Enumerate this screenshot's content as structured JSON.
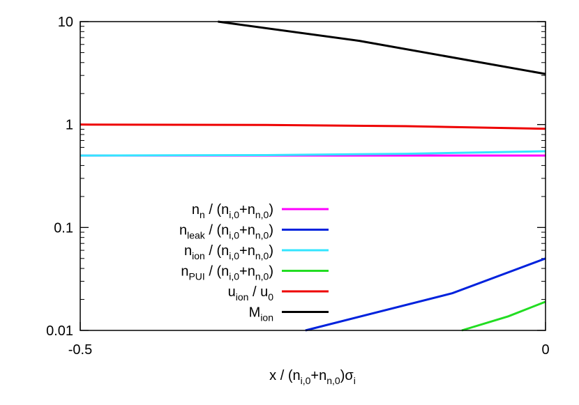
{
  "chart_data": {
    "type": "line",
    "title": "",
    "xlabel": {
      "base": "x / (n",
      "sub1": "i,0",
      "mid": "+n",
      "sub2": "n,0",
      "end": ")σ",
      "sub3": "i"
    },
    "ylabel": "",
    "xlim": [
      -0.5,
      0
    ],
    "ylim": [
      0.01,
      10
    ],
    "yscale": "log",
    "grid": false,
    "legend_position": "bottom-left",
    "x_ticks": [
      {
        "value": -0.5,
        "label": "-0.5"
      },
      {
        "value": 0,
        "label": "0"
      }
    ],
    "y_ticks": [
      {
        "value": 0.01,
        "label": "0.01"
      },
      {
        "value": 0.1,
        "label": "0.1"
      },
      {
        "value": 1,
        "label": "1"
      },
      {
        "value": 10,
        "label": "10"
      }
    ],
    "series": [
      {
        "name": {
          "main": "n",
          "sub": "n",
          "rest": " / (n",
          "sub2": "i,0",
          "rest2": "+n",
          "sub3": "n,0",
          "rest3": ")"
        },
        "color": "#ff00ff",
        "points": [
          [
            -0.5,
            0.5
          ],
          [
            -0.25,
            0.5
          ],
          [
            0,
            0.5
          ]
        ]
      },
      {
        "name": {
          "main": "n",
          "sub": "leak",
          "rest": " / (n",
          "sub2": "i,0",
          "rest2": "+n",
          "sub3": "n,0",
          "rest3": ")"
        },
        "color": "#0022dd",
        "points": [
          [
            -0.258,
            0.01
          ],
          [
            -0.1,
            0.023
          ],
          [
            0,
            0.05
          ]
        ]
      },
      {
        "name": {
          "main": "n",
          "sub": "ion",
          "rest": " / (n",
          "sub2": "i,0",
          "rest2": "+n",
          "sub3": "n,0",
          "rest3": ")"
        },
        "color": "#33e5ff",
        "points": [
          [
            -0.5,
            0.5
          ],
          [
            -0.3,
            0.505
          ],
          [
            -0.15,
            0.52
          ],
          [
            0,
            0.55
          ]
        ]
      },
      {
        "name": {
          "main": "n",
          "sub": "PUI",
          "rest": " / (n",
          "sub2": "i,0",
          "rest2": "+n",
          "sub3": "n,0",
          "rest3": ")"
        },
        "color": "#22dd22",
        "points": [
          [
            -0.09,
            0.01
          ],
          [
            -0.04,
            0.0137
          ],
          [
            0,
            0.019
          ]
        ]
      },
      {
        "name": {
          "main": "u",
          "sub": "ion",
          "rest": " / u",
          "sub2": "0",
          "rest2": "",
          "sub3": "",
          "rest3": ""
        },
        "color": "#ee0000",
        "points": [
          [
            -0.5,
            1.0
          ],
          [
            -0.3,
            0.99
          ],
          [
            -0.15,
            0.965
          ],
          [
            0,
            0.91
          ]
        ]
      },
      {
        "name": {
          "main": "M",
          "sub": "ion",
          "rest": "",
          "sub2": "",
          "rest2": "",
          "sub3": "",
          "rest3": ""
        },
        "color": "#000000",
        "points": [
          [
            -0.352,
            10.0
          ],
          [
            -0.2,
            6.5
          ],
          [
            0,
            3.1
          ]
        ]
      }
    ]
  }
}
